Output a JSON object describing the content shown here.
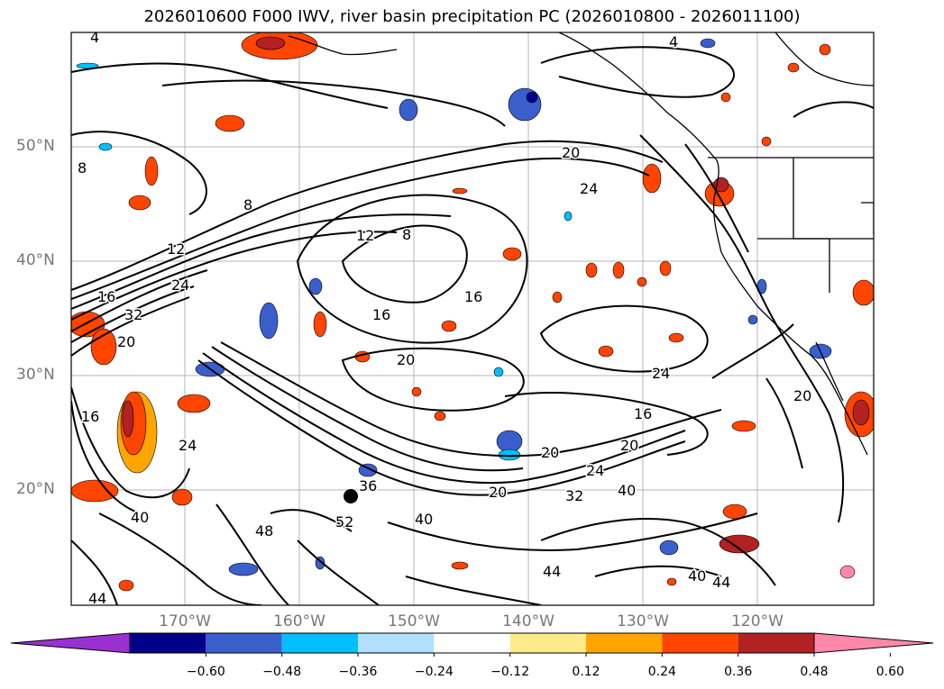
{
  "title": "2026010600 F000 IWV, river basin precipitation PC (2026010800 - 2026011100)",
  "axes": {
    "lat_labels": [
      "50°N",
      "40°N",
      "30°N",
      "20°N"
    ],
    "lon_labels": [
      "170°W",
      "160°W",
      "150°W",
      "140°W",
      "130°W",
      "120°W"
    ]
  },
  "contour_labels": [
    "4",
    "4",
    "8",
    "8",
    "8",
    "12",
    "12",
    "16",
    "16",
    "16",
    "16",
    "20",
    "20",
    "20",
    "20",
    "20",
    "20",
    "24",
    "24",
    "24",
    "24",
    "24",
    "32",
    "32",
    "36",
    "40",
    "40",
    "40",
    "40",
    "44",
    "44",
    "44",
    "48",
    "52",
    "20",
    "16"
  ],
  "colorbar": {
    "ticks": [
      "−0.60",
      "−0.48",
      "−0.36",
      "−0.24",
      "−0.12",
      "0.12",
      "0.24",
      "0.36",
      "0.48",
      "0.60"
    ],
    "colors": [
      "#9b30d0",
      "#00008b",
      "#3a5fcd",
      "#00bfff",
      "#b0e2ff",
      "#ffffff",
      "#ffeb8c",
      "#ffa500",
      "#ff4500",
      "#b22222",
      "#ff88aa"
    ],
    "extend": "both"
  }
}
